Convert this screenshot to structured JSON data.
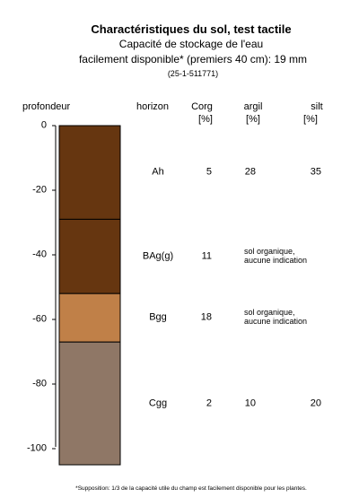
{
  "header": {
    "title": "Charactéristiques du sol, test tactile",
    "subtitle_line1": "Capacité de stockage de l'eau",
    "subtitle_line2": "facilement disponible* (premiers 40 cm): 19 mm",
    "sample_code": "(25-1-511771)"
  },
  "columns": {
    "depth": "profondeur",
    "horizon": "horizon",
    "corg": "Corg",
    "corg_unit": "[%]",
    "clay": "argil",
    "clay_unit": "[%]",
    "silt": "silt",
    "silt_unit": "[%]"
  },
  "chart_data": {
    "type": "soil-profile",
    "ylabel": "profondeur",
    "ylim": [
      -105,
      0
    ],
    "yticks": [
      0,
      -20,
      -40,
      -60,
      -80,
      -100
    ],
    "ytick_labels": [
      "0",
      "-20",
      "-40",
      "-60",
      "-80",
      "-100"
    ],
    "layers": [
      {
        "horizon": "Ah",
        "top": 0,
        "bottom": -29,
        "color": "#663610",
        "corg": "5",
        "clay": "28",
        "silt": "35",
        "note": ""
      },
      {
        "horizon": "BAg(g)",
        "top": -29,
        "bottom": -52,
        "color": "#663610",
        "corg": "11",
        "clay": "",
        "silt": "",
        "note": "sol organique,\naucune indication"
      },
      {
        "horizon": "Bgg",
        "top": -52,
        "bottom": -67,
        "color": "#C08048",
        "corg": "18",
        "clay": "",
        "silt": "",
        "note": "sol organique,\naucune indication"
      },
      {
        "horizon": "Cgg",
        "top": -67,
        "bottom": -105,
        "color": "#8F7766",
        "corg": "2",
        "clay": "10",
        "silt": "20",
        "note": ""
      }
    ]
  },
  "footnote": "*Supposition: 1/3 de la capacité utile du champ est facilement disponible pour les plantes."
}
